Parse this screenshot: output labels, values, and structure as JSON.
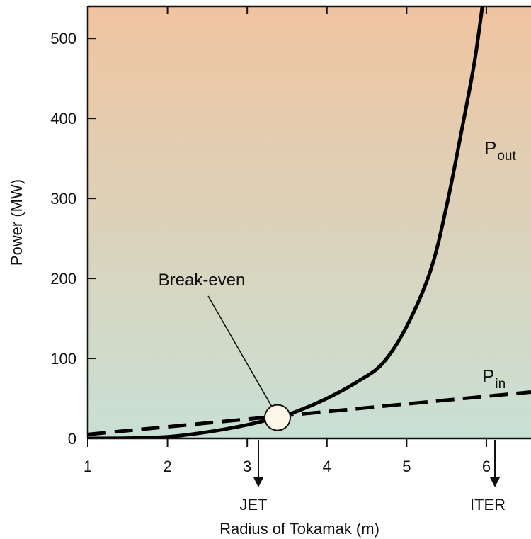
{
  "chart_data": {
    "type": "line",
    "title": "",
    "xlabel": "Radius of Tokamak (m)",
    "ylabel": "Power (MW)",
    "xlim": [
      1,
      6.56
    ],
    "ylim": [
      0,
      540
    ],
    "xticks": [
      1,
      2,
      3,
      4,
      5,
      6
    ],
    "yticks": [
      0,
      100,
      200,
      300,
      400,
      500
    ],
    "grid": false,
    "background_gradient": {
      "top": "#f0c4a0",
      "bottom": "#c8e0d4"
    },
    "series": [
      {
        "name": "P_out",
        "label_main": "P",
        "label_sub": "out",
        "style": "solid",
        "color": "#000000",
        "x": [
          1.0,
          1.5,
          2.0,
          2.5,
          3.0,
          3.4,
          3.6,
          4.0,
          4.4,
          4.7,
          5.0,
          5.3,
          5.5,
          5.7,
          5.85,
          5.95
        ],
        "y": [
          0,
          0.3,
          2,
          8,
          17,
          27,
          33,
          50,
          72,
          94,
          140,
          210,
          290,
          390,
          470,
          540
        ]
      },
      {
        "name": "P_in",
        "label_main": "P",
        "label_sub": "in",
        "style": "dashed",
        "color": "#000000",
        "x": [
          1.0,
          6.56
        ],
        "y": [
          5,
          58
        ]
      }
    ],
    "annotations": [
      {
        "text": "Break-even",
        "type": "callout",
        "x": 3.38,
        "y": 26
      },
      {
        "text": "JET",
        "type": "arrow-down",
        "x": 3.1
      },
      {
        "text": "ITER",
        "type": "arrow-down",
        "x": 6.1
      }
    ]
  }
}
